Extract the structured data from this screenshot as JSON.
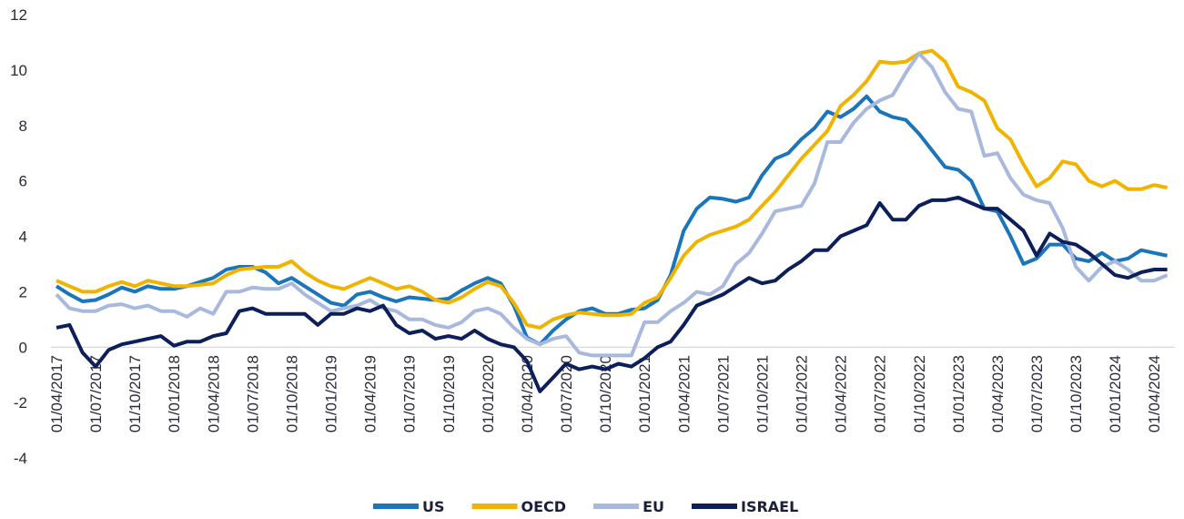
{
  "chart_data": {
    "type": "line",
    "categories": [
      "01/04/2017",
      null,
      null,
      "01/07/2017",
      null,
      null,
      "01/10/2017",
      null,
      null,
      "01/01/2018",
      null,
      null,
      "01/04/2018",
      null,
      null,
      "01/07/2018",
      null,
      null,
      "01/10/2018",
      null,
      null,
      "01/01/2019",
      null,
      null,
      "01/04/2019",
      null,
      null,
      "01/07/2019",
      null,
      null,
      "01/10/2019",
      null,
      null,
      "01/01/2020",
      null,
      null,
      "01/04/2020",
      null,
      null,
      "01/07/2020",
      null,
      null,
      "01/10/2020",
      null,
      null,
      "01/01/2021",
      null,
      null,
      "01/04/2021",
      null,
      null,
      "01/07/2021",
      null,
      null,
      "01/10/2021",
      null,
      null,
      "01/01/2022",
      null,
      null,
      "01/04/2022",
      null,
      null,
      "01/07/2022",
      null,
      null,
      "01/10/2022",
      null,
      null,
      "01/01/2023",
      null,
      null,
      "01/04/2023",
      null,
      null,
      "01/07/2023",
      null,
      null,
      "01/10/2023",
      null,
      null,
      "01/01/2024",
      null,
      null,
      "01/04/2024",
      null
    ],
    "series": [
      {
        "name": "US",
        "color": "#1b75bb",
        "values": [
          2.2,
          1.9,
          1.65,
          1.7,
          1.9,
          2.15,
          2.0,
          2.2,
          2.1,
          2.1,
          2.2,
          2.35,
          2.5,
          2.8,
          2.9,
          2.9,
          2.7,
          2.3,
          2.5,
          2.2,
          1.9,
          1.6,
          1.5,
          1.9,
          2.0,
          1.8,
          1.65,
          1.8,
          1.75,
          1.7,
          1.75,
          2.05,
          2.3,
          2.5,
          2.3,
          1.5,
          0.35,
          0.1,
          0.6,
          1.0,
          1.3,
          1.4,
          1.2,
          1.2,
          1.35,
          1.4,
          1.7,
          2.6,
          4.2,
          5.0,
          5.4,
          5.35,
          5.25,
          5.4,
          6.2,
          6.8,
          7.0,
          7.5,
          7.9,
          8.5,
          8.3,
          8.6,
          9.05,
          8.5,
          8.3,
          8.2,
          7.7,
          7.1,
          6.5,
          6.4,
          6.0,
          5.0,
          4.9,
          4.0,
          3.0,
          3.2,
          3.7,
          3.7,
          3.2,
          3.1,
          3.4,
          3.1,
          3.2,
          3.5,
          3.4,
          3.3
        ]
      },
      {
        "name": "OECD",
        "color": "#f0b400",
        "values": [
          2.4,
          2.2,
          2.0,
          2.0,
          2.2,
          2.35,
          2.2,
          2.4,
          2.3,
          2.2,
          2.2,
          2.25,
          2.3,
          2.6,
          2.8,
          2.85,
          2.9,
          2.9,
          3.1,
          2.7,
          2.4,
          2.2,
          2.1,
          2.3,
          2.5,
          2.3,
          2.1,
          2.2,
          2.0,
          1.7,
          1.6,
          1.8,
          2.1,
          2.35,
          2.2,
          1.6,
          0.8,
          0.7,
          1.0,
          1.15,
          1.25,
          1.2,
          1.15,
          1.15,
          1.2,
          1.6,
          1.8,
          2.5,
          3.3,
          3.8,
          4.05,
          4.2,
          4.35,
          4.6,
          5.1,
          5.6,
          6.2,
          6.8,
          7.3,
          7.8,
          8.7,
          9.1,
          9.6,
          10.3,
          10.25,
          10.3,
          10.6,
          10.7,
          10.3,
          9.4,
          9.2,
          8.9,
          7.9,
          7.5,
          6.6,
          5.8,
          6.1,
          6.7,
          6.6,
          6.0,
          5.8,
          6.0,
          5.7,
          5.7,
          5.85,
          5.75
        ]
      },
      {
        "name": "EU",
        "color": "#a9b9dd",
        "values": [
          1.9,
          1.4,
          1.3,
          1.3,
          1.5,
          1.55,
          1.4,
          1.5,
          1.3,
          1.3,
          1.1,
          1.4,
          1.2,
          2.0,
          2.0,
          2.15,
          2.1,
          2.1,
          2.3,
          1.9,
          1.6,
          1.3,
          1.4,
          1.5,
          1.7,
          1.4,
          1.3,
          1.0,
          1.0,
          0.8,
          0.7,
          0.9,
          1.3,
          1.4,
          1.2,
          0.7,
          0.3,
          0.1,
          0.3,
          0.4,
          -0.2,
          -0.3,
          -0.3,
          -0.3,
          -0.3,
          0.9,
          0.9,
          1.3,
          1.6,
          2.0,
          1.9,
          2.2,
          3.0,
          3.4,
          4.1,
          4.9,
          5.0,
          5.1,
          5.9,
          7.4,
          7.4,
          8.1,
          8.6,
          8.9,
          9.1,
          9.9,
          10.6,
          10.1,
          9.2,
          8.6,
          8.5,
          6.9,
          7.0,
          6.1,
          5.5,
          5.3,
          5.2,
          4.3,
          2.9,
          2.4,
          2.9,
          3.1,
          2.8,
          2.4,
          2.4,
          2.6
        ]
      },
      {
        "name": "ISRAEL",
        "color": "#0c1f5b",
        "values": [
          0.7,
          0.8,
          -0.2,
          -0.7,
          -0.1,
          0.1,
          0.2,
          0.3,
          0.4,
          0.05,
          0.2,
          0.2,
          0.4,
          0.5,
          1.3,
          1.4,
          1.2,
          1.2,
          1.2,
          1.2,
          0.8,
          1.2,
          1.2,
          1.4,
          1.3,
          1.5,
          0.8,
          0.5,
          0.6,
          0.3,
          0.4,
          0.3,
          0.6,
          0.3,
          0.1,
          0.0,
          -0.5,
          -1.6,
          -1.1,
          -0.6,
          -0.8,
          -0.7,
          -0.8,
          -0.6,
          -0.7,
          -0.4,
          0.0,
          0.2,
          0.8,
          1.5,
          1.7,
          1.9,
          2.2,
          2.5,
          2.3,
          2.4,
          2.8,
          3.1,
          3.5,
          3.5,
          4.0,
          4.2,
          4.4,
          5.2,
          4.6,
          4.6,
          5.1,
          5.3,
          5.3,
          5.4,
          5.2,
          5.0,
          5.0,
          4.6,
          4.2,
          3.3,
          4.1,
          3.8,
          3.7,
          3.4,
          3.0,
          2.6,
          2.5,
          2.7,
          2.8,
          2.8
        ]
      }
    ],
    "ylim": [
      -4,
      12
    ],
    "yticks": [
      -4,
      -2,
      0,
      2,
      4,
      6,
      8,
      10,
      12
    ],
    "grid": false,
    "legend": "bottom"
  }
}
